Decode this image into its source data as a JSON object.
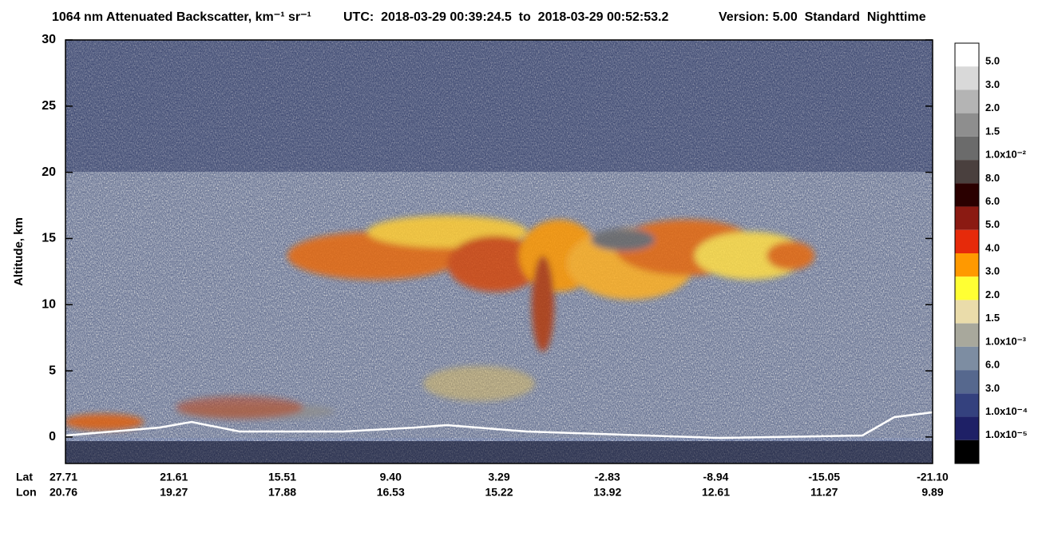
{
  "chart_data": {
    "type": "heatmap",
    "title": "1064 nm Attenuated Backscatter, km⁻¹ sr⁻¹",
    "time_range": "UTC:  2018-03-29 00:39:24.5  to  2018-03-29 00:52:53.2",
    "version": "Version: 5.00  Standard  Nighttime",
    "y_label": "Altitude, km",
    "ylim": [
      -2,
      30
    ],
    "yticks": [
      0,
      5,
      10,
      15,
      20,
      25,
      30
    ],
    "x_rows": [
      {
        "name": "Lat",
        "labels": [
          "27.71",
          "21.61",
          "15.51",
          "9.40",
          "3.29",
          "-2.83",
          "-8.94",
          "-15.05",
          "-21.10"
        ]
      },
      {
        "name": "Lon",
        "labels": [
          "20.76",
          "19.27",
          "17.88",
          "16.53",
          "15.22",
          "13.92",
          "12.61",
          "11.27",
          "9.89"
        ]
      }
    ],
    "colorbar": {
      "colors": [
        "#ffffff",
        "#d9d9d9",
        "#b4b4b4",
        "#8e8e8e",
        "#6b6b6b",
        "#4a403e",
        "#2a0000",
        "#8b1a12",
        "#e62a0a",
        "#ff9900",
        "#ffff33",
        "#eadcaa",
        "#a8a89c",
        "#7d8da2",
        "#56688e",
        "#34417e",
        "#1e2066",
        "#000000"
      ],
      "labels": [
        "5.0",
        "3.0",
        "2.0",
        "1.5",
        "1.0x10⁻²",
        "8.0",
        "6.0",
        "5.0",
        "4.0",
        "3.0",
        "2.0",
        "1.5",
        "1.0x10⁻³",
        "6.0",
        "3.0",
        "1.0x10⁻⁴",
        "1.0x10⁻⁵"
      ]
    }
  }
}
